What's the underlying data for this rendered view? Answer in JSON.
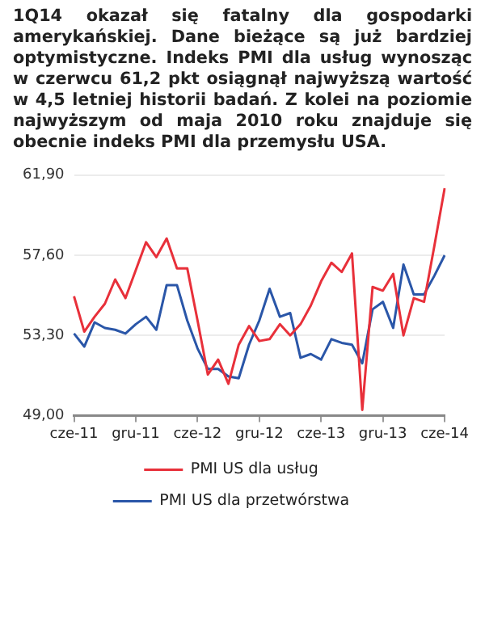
{
  "chart_data": {
    "type": "line",
    "title": "1Q14  okazał się fatalny dla gospodarki amerykańskiej. Dane bieżące są już bardziej optymistyczne. Indeks PMI dla usług wynosząc w czerwcu 61,2 pkt osiągnął najwyższą wartość w 4,5 letniej historii badań.  Z kolei na poziomie najwyższym od maja 2010 roku znajduje się obecnie indeks PMI dla przemysłu USA.",
    "categories": [
      "cze-11",
      null,
      null,
      null,
      null,
      null,
      "gru-11",
      null,
      null,
      null,
      null,
      null,
      "cze-12",
      null,
      null,
      null,
      null,
      null,
      "gru-12",
      null,
      null,
      null,
      null,
      null,
      "cze-13",
      null,
      null,
      null,
      null,
      null,
      "gru-13",
      null,
      null,
      null,
      null,
      null,
      "cze-14"
    ],
    "series": [
      {
        "name": "PMI US dla usług",
        "color": "#e8303a",
        "values": [
          55.4,
          53.5,
          54.3,
          55.0,
          56.3,
          55.3,
          56.8,
          58.3,
          57.5,
          58.5,
          56.9,
          56.9,
          54.1,
          51.2,
          52.0,
          50.7,
          52.8,
          53.8,
          53.0,
          53.1,
          53.9,
          53.3,
          53.9,
          54.9,
          56.2,
          57.2,
          56.7,
          57.7,
          49.3,
          55.9,
          55.7,
          56.6,
          53.3,
          55.3,
          55.1,
          58.1,
          61.2
        ]
      },
      {
        "name": "PMI US dla przetwórstwa",
        "color": "#2a56a8",
        "values": [
          53.4,
          52.7,
          54.0,
          53.7,
          53.6,
          53.4,
          53.9,
          54.3,
          53.6,
          56.0,
          56.0,
          54.1,
          52.6,
          51.5,
          51.5,
          51.1,
          51.0,
          52.8,
          54.1,
          55.8,
          54.3,
          54.5,
          52.1,
          52.3,
          52.0,
          53.1,
          52.9,
          52.8,
          51.8,
          54.7,
          55.1,
          53.7,
          57.1,
          55.5,
          55.5,
          56.5,
          57.6
        ]
      }
    ],
    "ylim": [
      49,
      61.9
    ],
    "yticks": [
      {
        "value": 49,
        "label": "49,00"
      },
      {
        "value": 53.3,
        "label": "53,30"
      },
      {
        "value": 57.6,
        "label": "57,60"
      },
      {
        "value": 61.9,
        "label": "61,90"
      }
    ],
    "grid": "y",
    "legend": "bottom",
    "marker": "none",
    "line_style": "solid"
  }
}
